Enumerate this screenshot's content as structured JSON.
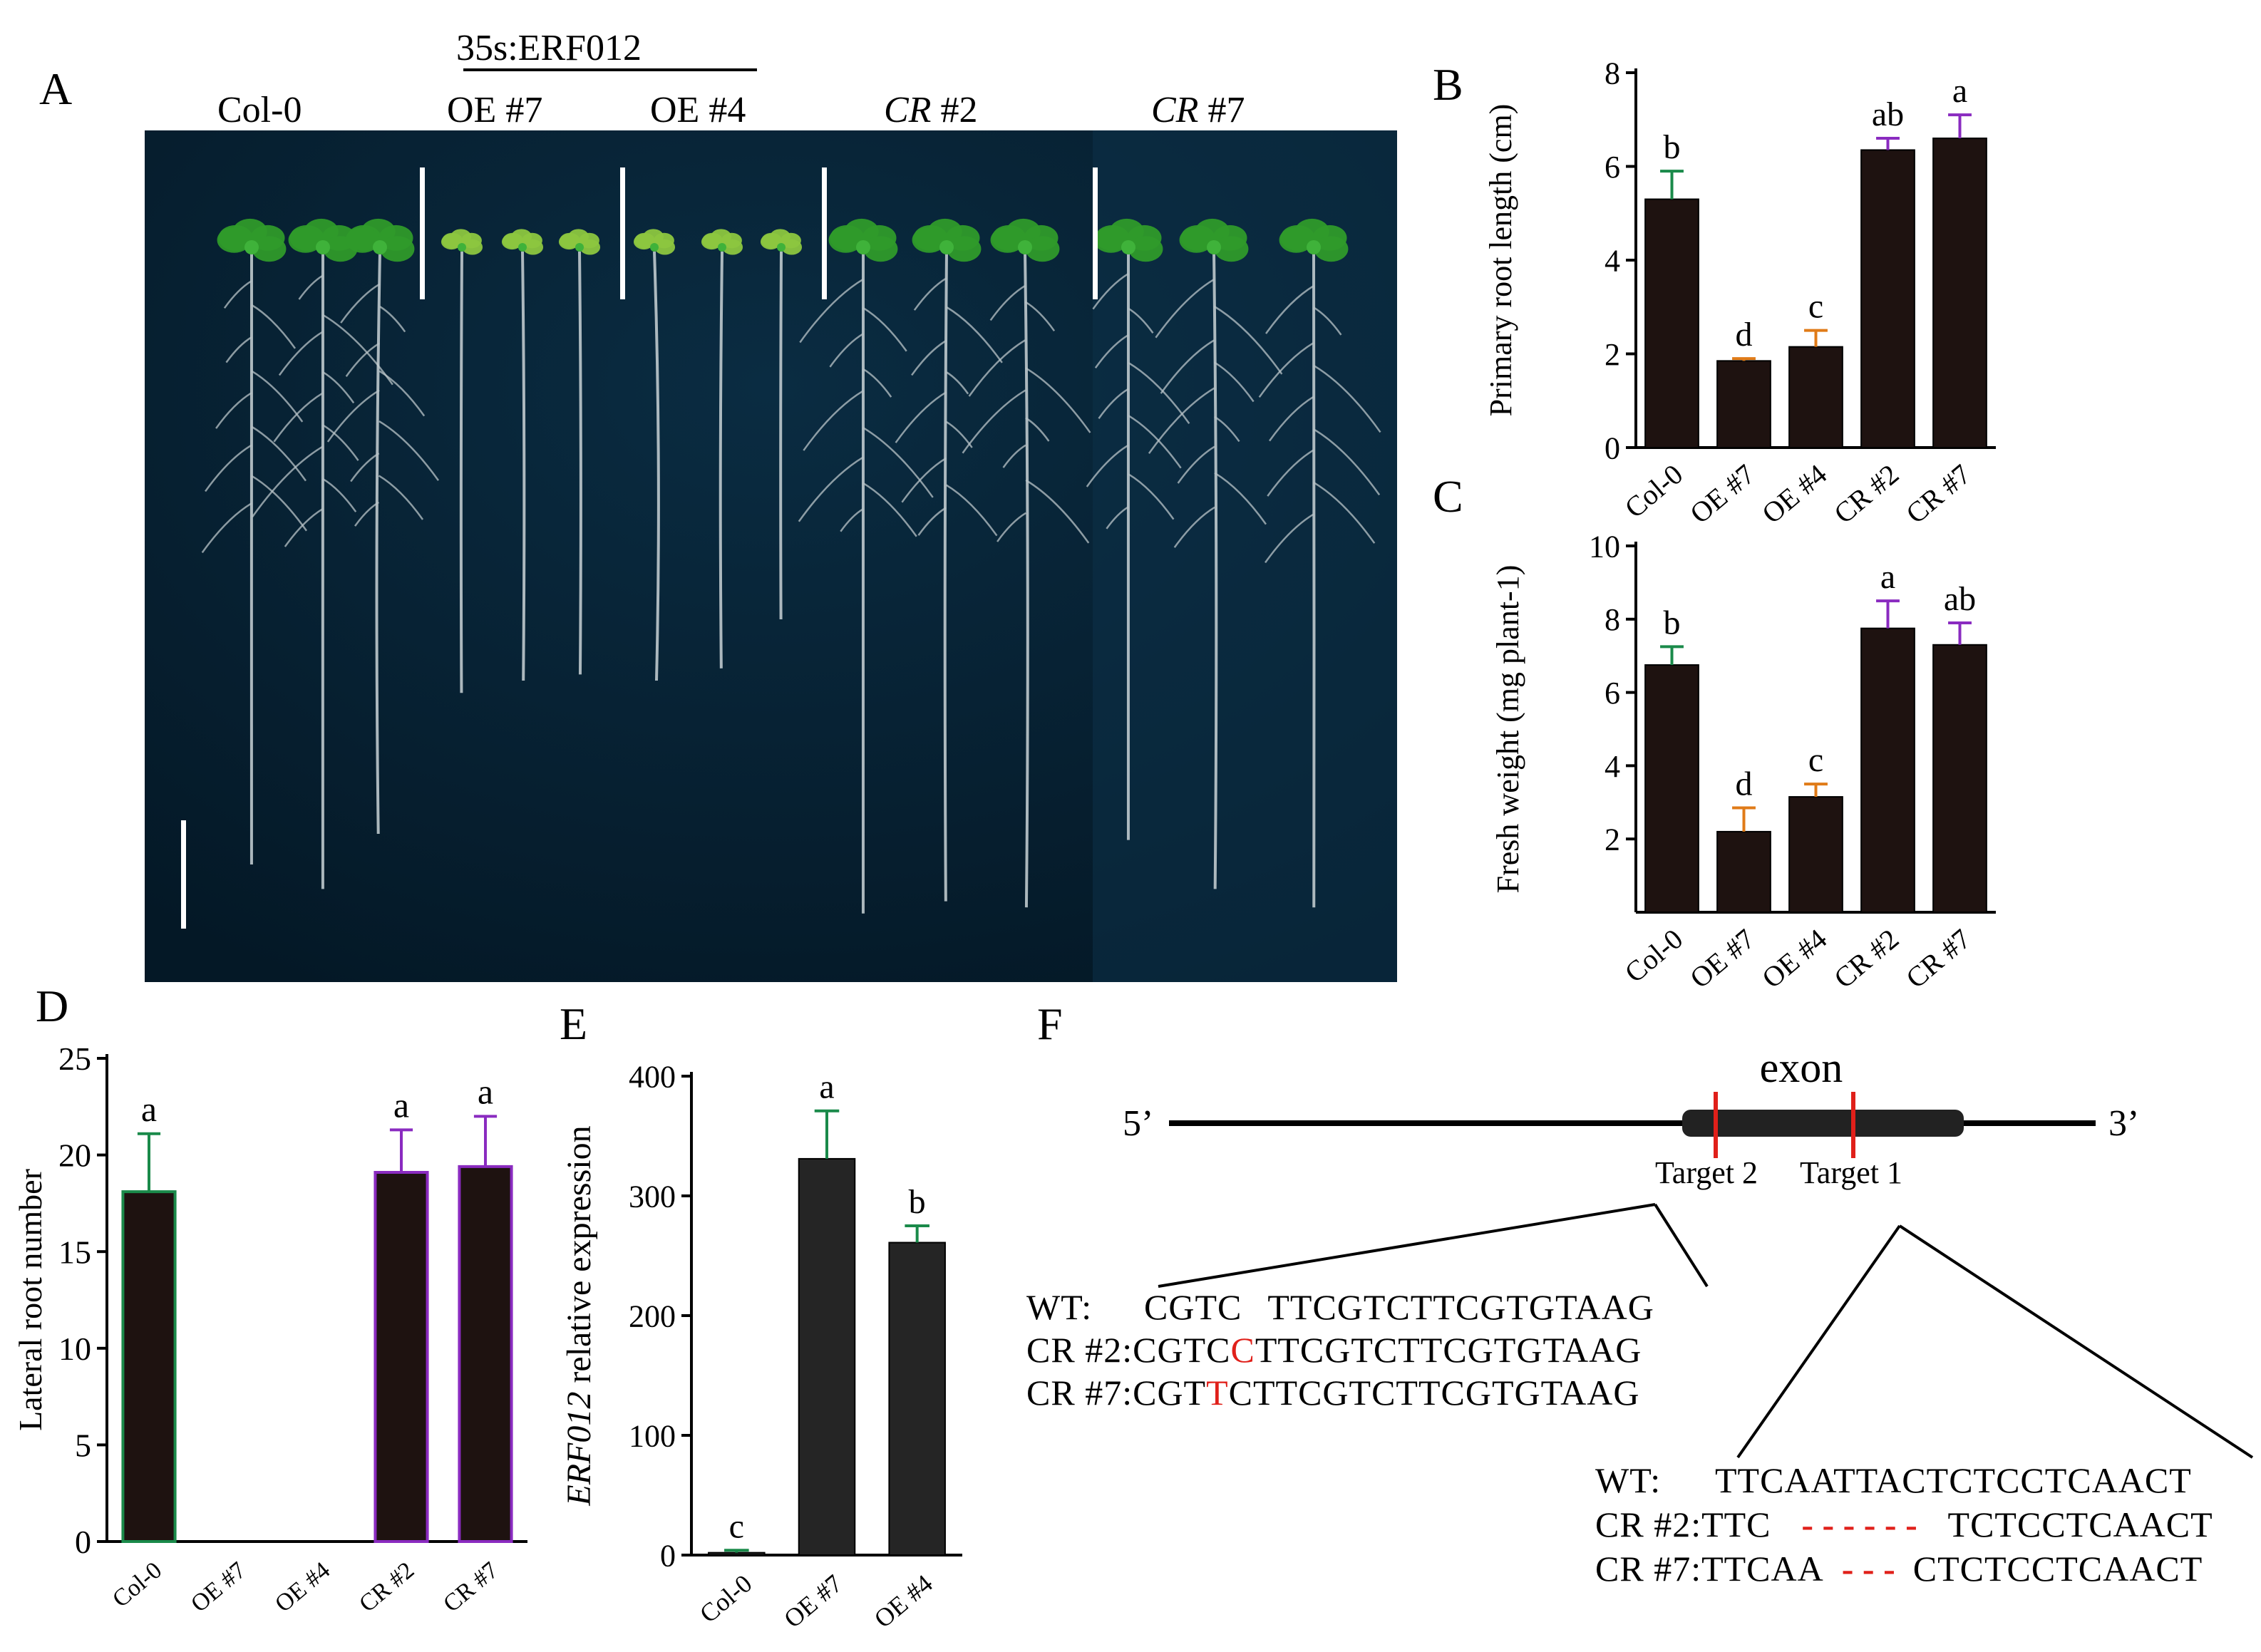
{
  "panelA": {
    "letter": "A",
    "construct": "35s:ERF012",
    "genotypes": [
      {
        "label": "Col-0",
        "italic": false
      },
      {
        "label": "OE #7",
        "italic": false
      },
      {
        "label": "OE #4",
        "italic": false
      },
      {
        "label": "CR",
        "suffix": " #2",
        "italic": true
      },
      {
        "label": "CR",
        "suffix": " #7",
        "italic": true
      }
    ]
  },
  "chart_data": [
    {
      "panel": "B",
      "type": "bar",
      "categories": [
        "Col-0",
        "OE #7",
        "OE #4",
        "CR #2",
        "CR #7"
      ],
      "values": [
        5.3,
        1.85,
        2.15,
        6.35,
        6.6
      ],
      "errors": [
        0.6,
        0.05,
        0.35,
        0.25,
        0.5
      ],
      "letters": [
        "b",
        "d",
        "c",
        "ab",
        "a"
      ],
      "error_colors": [
        "#1a8a4a",
        "#e07b18",
        "#e07b18",
        "#8a2bc0",
        "#8a2bc0"
      ],
      "ylabel": "Primary root length (cm)",
      "ylim": [
        0,
        8
      ],
      "yticks": [
        "0",
        "2",
        "4",
        "6",
        "8"
      ]
    },
    {
      "panel": "C",
      "type": "bar",
      "categories": [
        "Col-0",
        "OE #7",
        "OE #4",
        "CR #2",
        "CR #7"
      ],
      "values": [
        6.75,
        2.2,
        3.15,
        7.75,
        7.3
      ],
      "errors": [
        0.5,
        0.65,
        0.35,
        0.75,
        0.6
      ],
      "letters": [
        "b",
        "d",
        "c",
        "a",
        "ab"
      ],
      "error_colors": [
        "#1a8a4a",
        "#e07b18",
        "#e07b18",
        "#8a2bc0",
        "#8a2bc0"
      ],
      "ylabel": "Fresh weight (mg plant-1)",
      "ylim": [
        0,
        10
      ],
      "yticks": [
        "2",
        "4",
        "6",
        "8",
        "10"
      ]
    },
    {
      "panel": "D",
      "type": "bar",
      "categories": [
        "Col-0",
        "OE #7",
        "OE #4",
        "CR #2",
        "CR #7"
      ],
      "values": [
        18.1,
        0,
        0,
        19.1,
        19.4
      ],
      "errors": [
        3.0,
        0,
        0,
        2.2,
        2.6
      ],
      "letters": [
        "a",
        "",
        "",
        "a",
        "a"
      ],
      "error_colors": [
        "#1a8a4a",
        "#e07b18",
        "#e07b18",
        "#8a2bc0",
        "#8a2bc0"
      ],
      "ylabel": "Lateral root number",
      "ylim": [
        0,
        25
      ],
      "yticks": [
        "0",
        "5",
        "10",
        "15",
        "20",
        "25"
      ]
    },
    {
      "panel": "E",
      "type": "bar",
      "categories": [
        "Col-0",
        "OE #7",
        "OE #4"
      ],
      "values": [
        2,
        331,
        261
      ],
      "errors": [
        2,
        40,
        14
      ],
      "letters": [
        "c",
        "a",
        "b"
      ],
      "error_colors": [
        "#1a8a4a",
        "#1a8a4a",
        "#1a8a4a"
      ],
      "ylabel_italic": "ERF012",
      "ylabel": " relative expression",
      "ylim": [
        0,
        400
      ],
      "yticks": [
        "0",
        "100",
        "200",
        "300",
        "400"
      ]
    }
  ],
  "panelF": {
    "letter": "F",
    "five_prime": "5’",
    "three_prime": "3’",
    "exon": "exon",
    "target2": "Target 2",
    "target1": "Target 1",
    "left": [
      {
        "label": "WT:",
        "pre": "CGTC",
        "ins": "",
        "post": "TTCGTCTTCGTGTAAG"
      },
      {
        "label": "CR #2:",
        "pre": "CGTC",
        "ins": "C",
        "post": "TTCGTCTTCGTGTAAG"
      },
      {
        "label": "CR #7:",
        "pre": "CGT",
        "ins": "T",
        "post": "CTTCGTCTTCGTGTAAG"
      }
    ],
    "right": [
      {
        "label": "WT:",
        "pre": "TTCAATTACTCTCCTCAACT",
        "post": ""
      },
      {
        "label": "CR #2:",
        "pre": "TTC",
        "post": "TCTCCTCAACT"
      },
      {
        "label": "CR #7:",
        "pre": "TTCAA",
        "post": "CTCTCCTCAACT"
      }
    ]
  }
}
